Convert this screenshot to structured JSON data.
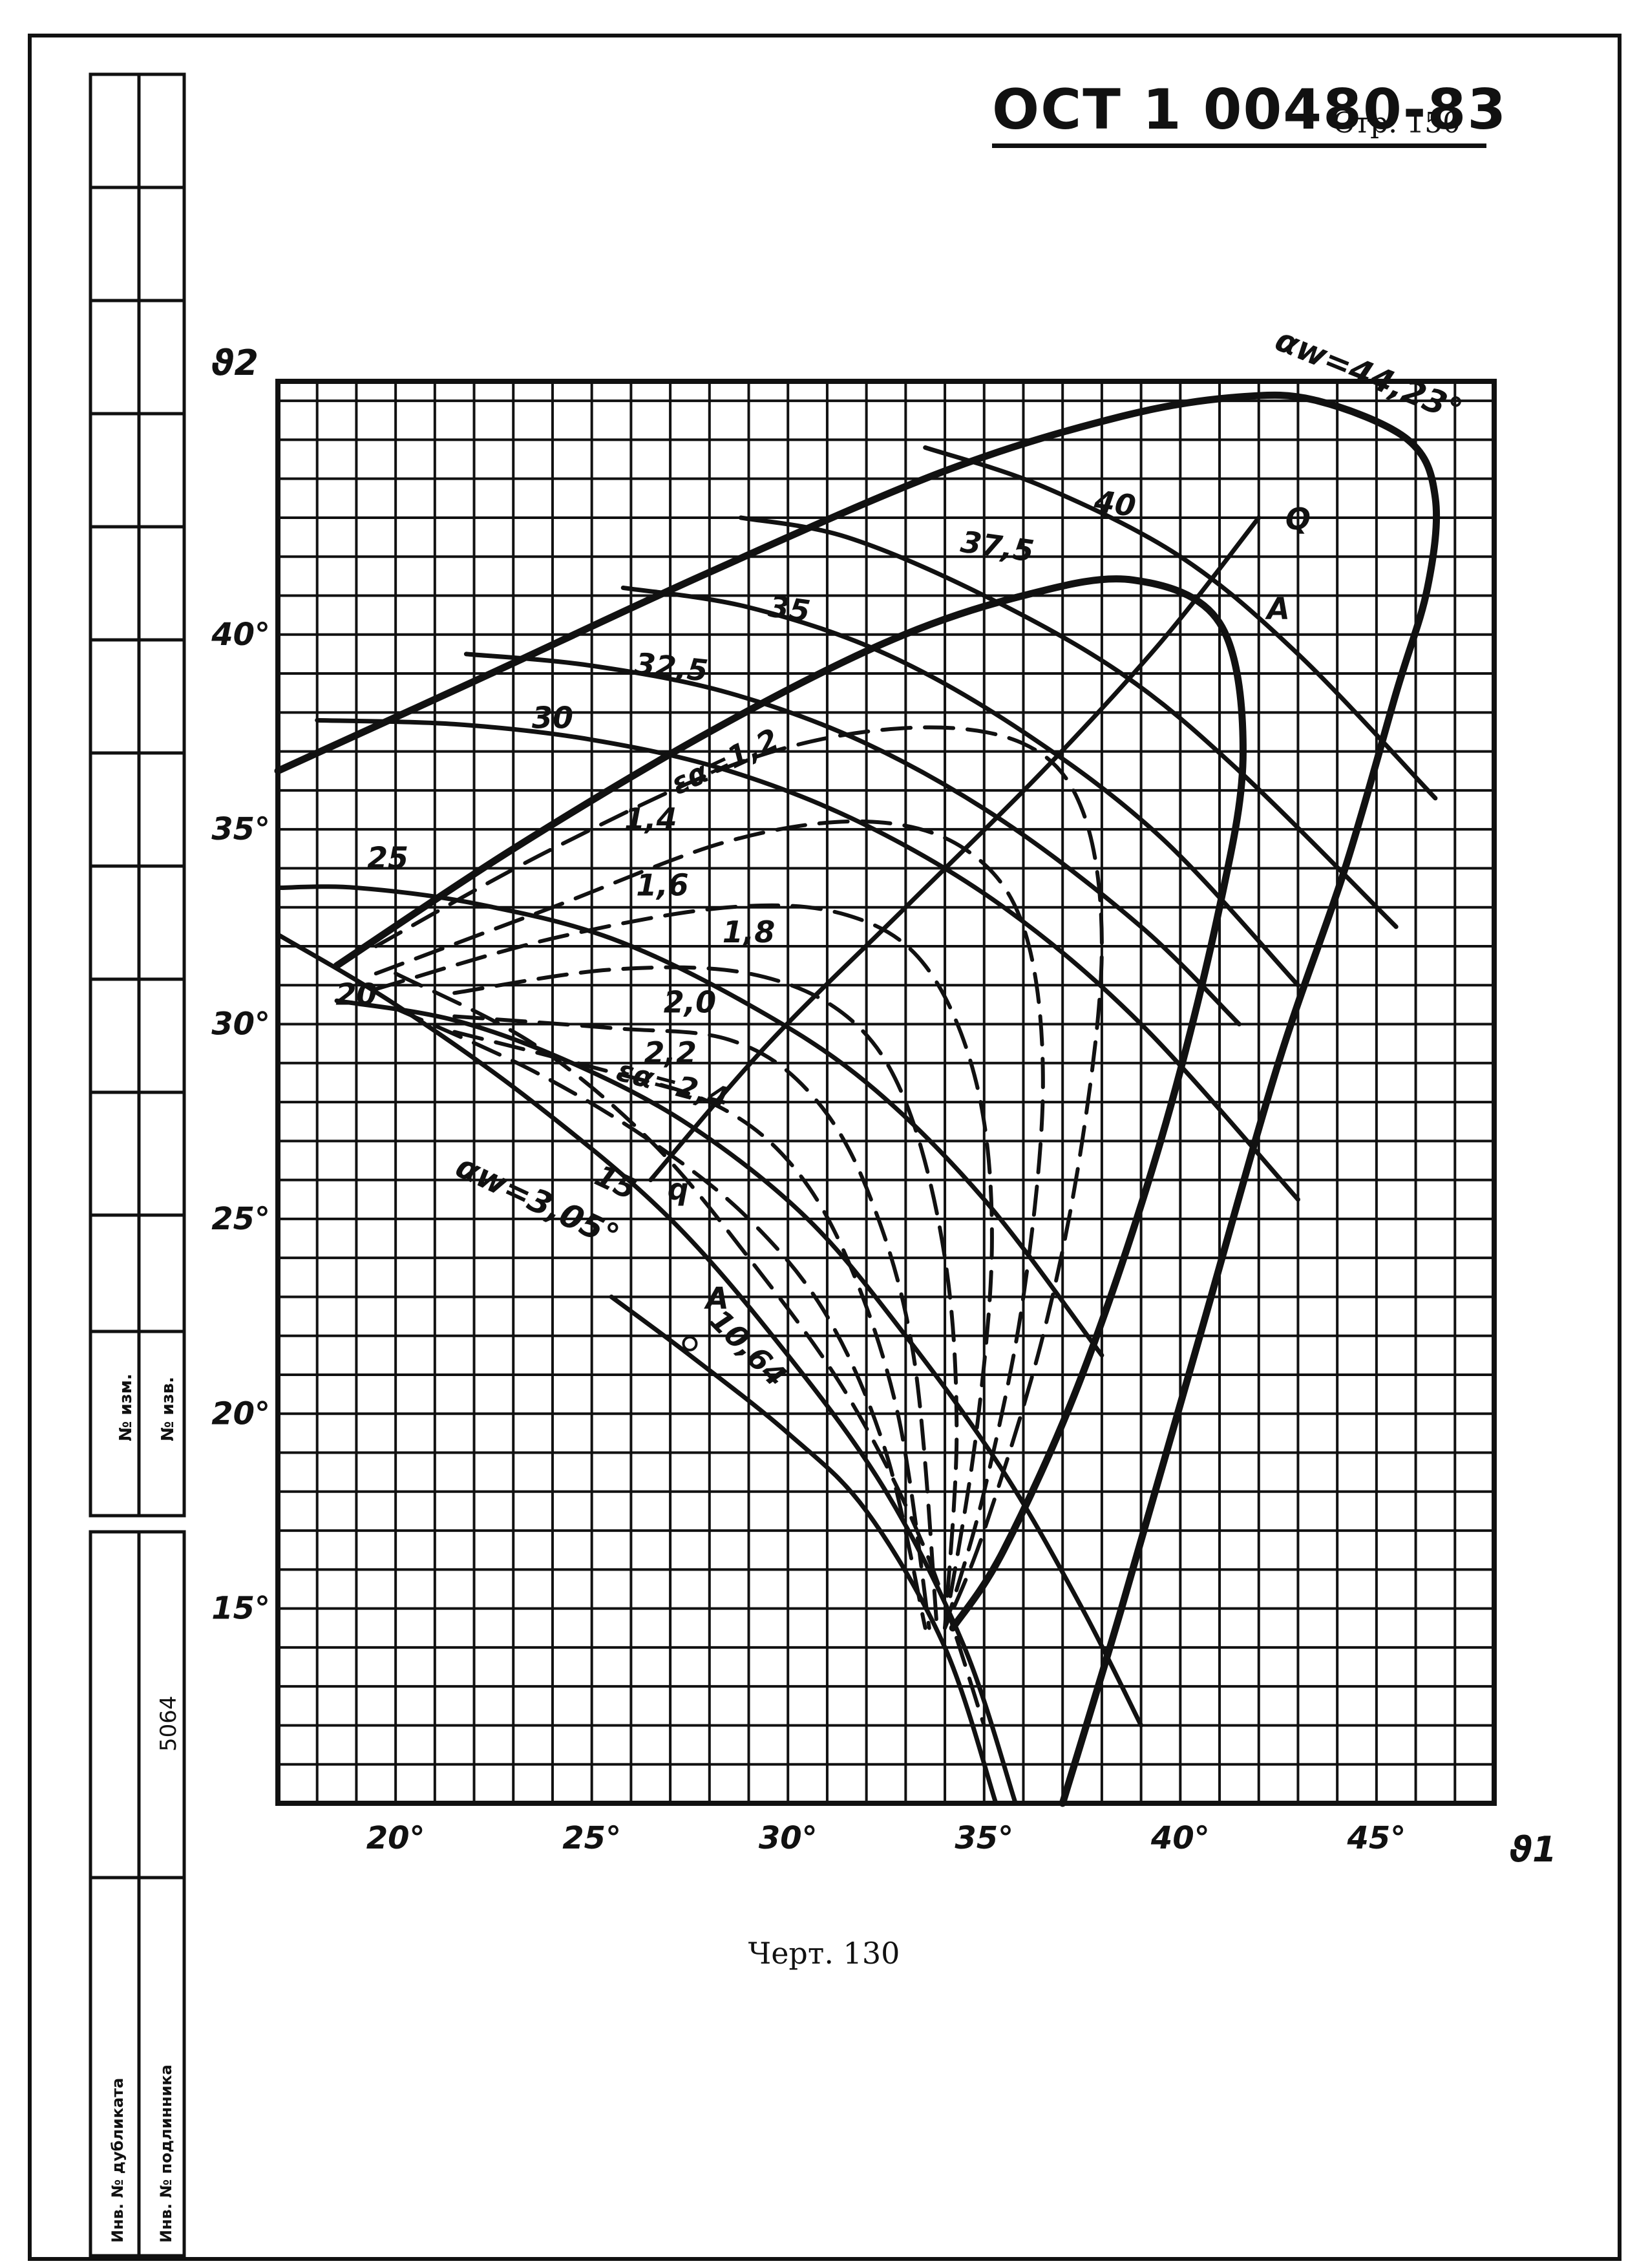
{
  "header": {
    "doc_number": "ОСТ 1 00480-83",
    "page_label": "Стр. 150"
  },
  "caption": "Черт. 130",
  "stamp": {
    "inv_podl_no_label": "Инв. № подлинника",
    "inv_dubl_no_label": "Инв. № дубликата",
    "vzam_label": "№ изм.",
    "izv_label": "№ изв.",
    "inv_value": "5064"
  },
  "chart_data": {
    "type": "line",
    "xlabel": "ϑ1",
    "ylabel": "ϑ2",
    "xlim": [
      17,
      48
    ],
    "ylim": [
      10,
      46.5
    ],
    "grid": true,
    "x_ticks": [
      {
        "value": 20,
        "label": "20°"
      },
      {
        "value": 25,
        "label": "25°"
      },
      {
        "value": 30,
        "label": "30°"
      },
      {
        "value": 35,
        "label": "35°"
      },
      {
        "value": 40,
        "label": "40°"
      },
      {
        "value": 45,
        "label": "45°"
      }
    ],
    "y_ticks": [
      {
        "value": 15,
        "label": "15°"
      },
      {
        "value": 20,
        "label": "20°"
      },
      {
        "value": 25,
        "label": "25°"
      },
      {
        "value": 30,
        "label": "30°"
      },
      {
        "value": 35,
        "label": "35°"
      },
      {
        "value": 40,
        "label": "40°"
      }
    ],
    "curve_labels": {
      "alpha_max": "αw=44,23°",
      "alpha_min": "αw=3,05°",
      "eps_top": "εα=1,2",
      "eps_bottom": "εα=2,4",
      "point_Q_upper": "Q",
      "point_A_upper": "A",
      "point_q_lower": "q",
      "point_A_lower": "A",
      "value_10_64": "10,64"
    },
    "series": [
      {
        "name": "40",
        "style": "solid",
        "x": [
          33.5,
          36.5,
          40.0,
          43.0,
          46.5
        ],
        "y": [
          44.8,
          43.8,
          42.0,
          39.5,
          35.8
        ]
      },
      {
        "name": "37,5",
        "style": "solid",
        "x": [
          28.8,
          31.5,
          35.0,
          38.5,
          41.5,
          45.5
        ],
        "y": [
          43.0,
          42.5,
          41.0,
          39.0,
          36.5,
          32.5
        ]
      },
      {
        "name": "35",
        "style": "solid",
        "x": [
          25.8,
          29.0,
          32.5,
          36.0,
          39.5,
          43.0
        ],
        "y": [
          41.2,
          40.7,
          39.5,
          37.5,
          34.8,
          31.0
        ]
      },
      {
        "name": "32,5",
        "style": "solid",
        "x": [
          21.8,
          25.0,
          28.5,
          32.0,
          35.5,
          39.0,
          41.5
        ],
        "y": [
          39.5,
          39.2,
          38.5,
          37.2,
          35.2,
          32.5,
          30.0
        ]
      },
      {
        "name": "30",
        "style": "solid",
        "x": [
          18.0,
          21.5,
          25.0,
          28.5,
          32.0,
          35.5,
          39.0,
          43.0
        ],
        "y": [
          37.8,
          37.7,
          37.3,
          36.5,
          35.1,
          33.0,
          30.0,
          25.5
        ]
      },
      {
        "name": "25",
        "style": "solid",
        "x": [
          17.0,
          19.0,
          22.0,
          25.5,
          29.0,
          32.0,
          35.0,
          38.0
        ],
        "y": [
          33.5,
          33.5,
          33.1,
          32.2,
          30.5,
          28.5,
          25.5,
          21.5
        ]
      },
      {
        "name": "20",
        "style": "solid",
        "x": [
          18.5,
          21.5,
          24.5,
          27.5,
          30.5,
          33.0,
          35.5,
          37.5,
          39.0
        ],
        "y": [
          30.6,
          30.1,
          29.0,
          27.4,
          25.0,
          22.0,
          18.5,
          15.0,
          12.0
        ]
      },
      {
        "name": "15",
        "style": "solid",
        "x": [
          17.0,
          20.0,
          23.5,
          27.0,
          30.0,
          32.5,
          34.5,
          35.8
        ],
        "y": [
          32.3,
          30.5,
          28.0,
          25.0,
          21.5,
          18.0,
          14.0,
          10.0
        ]
      },
      {
        "name": "10,64",
        "style": "solid",
        "x": [
          25.5,
          27.5,
          30.0,
          32.0,
          34.0,
          35.3
        ],
        "y": [
          23.0,
          21.5,
          19.5,
          17.5,
          14.0,
          10.0
        ]
      },
      {
        "name": "αw=44,23°",
        "style": "bold",
        "x": [
          17.0,
          22.0,
          28.0,
          34.0,
          38.5,
          41.5,
          43.5,
          45.8,
          46.5,
          46.3,
          45.5,
          44.2,
          42.5,
          40.5,
          38.5,
          37.0
        ],
        "y": [
          36.5,
          38.8,
          41.6,
          44.2,
          45.6,
          46.1,
          46.0,
          45.0,
          43.5,
          41.2,
          38.5,
          34.0,
          29.0,
          22.0,
          15.0,
          10.0
        ]
      },
      {
        "name": "Q",
        "style": "solid",
        "x": [
          26.5,
          29.5,
          33.0,
          36.5,
          39.5,
          42.0
        ],
        "y": [
          26.0,
          29.5,
          33.0,
          36.5,
          39.8,
          43.0
        ]
      },
      {
        "name": "A",
        "style": "bold",
        "x": [
          18.5,
          23.0,
          28.0,
          32.5,
          36.0,
          38.8,
          41.0,
          41.6,
          41.0,
          39.5,
          37.5,
          35.5,
          34.2
        ],
        "y": [
          31.5,
          34.5,
          37.5,
          39.8,
          41.0,
          41.4,
          40.3,
          37.0,
          33.0,
          27.0,
          21.0,
          16.5,
          14.5
        ]
      },
      {
        "name": "εα=1,2",
        "style": "dashed",
        "x": [
          19.5,
          24.0,
          29.0,
          33.0,
          36.0,
          37.5,
          38.0,
          37.5,
          36.5,
          35.0,
          34.0
        ],
        "y": [
          32.0,
          34.5,
          36.8,
          37.6,
          37.2,
          35.5,
          32.0,
          27.0,
          22.0,
          17.0,
          14.5
        ]
      },
      {
        "name": "1,4",
        "style": "dashed",
        "x": [
          19.5,
          24.0,
          28.5,
          32.0,
          34.5,
          36.0,
          36.5,
          36.0,
          35.0,
          34.0
        ],
        "y": [
          31.3,
          33.0,
          34.7,
          35.2,
          34.5,
          32.5,
          28.5,
          23.0,
          18.0,
          14.5
        ]
      },
      {
        "name": "1,6",
        "style": "dashed",
        "x": [
          19.5,
          24.0,
          28.5,
          31.5,
          33.5,
          34.8,
          35.2,
          34.8,
          34.0
        ],
        "y": [
          30.9,
          32.2,
          33.0,
          32.8,
          31.5,
          28.5,
          24.5,
          19.5,
          14.5
        ]
      },
      {
        "name": "1,8",
        "style": "dashed",
        "x": [
          21.5,
          25.5,
          29.0,
          31.5,
          33.0,
          34.0,
          34.3,
          34.0
        ],
        "y": [
          30.8,
          31.4,
          31.3,
          30.2,
          28.0,
          24.0,
          19.5,
          14.5
        ]
      },
      {
        "name": "2,0",
        "style": "dashed",
        "x": [
          21.5,
          25.5,
          28.5,
          30.5,
          32.0,
          33.2,
          33.8
        ],
        "y": [
          30.2,
          29.9,
          29.6,
          28.3,
          25.8,
          21.5,
          14.5
        ]
      },
      {
        "name": "2,2",
        "style": "dashed",
        "x": [
          21.5,
          25.0,
          28.0,
          30.0,
          31.5,
          32.8,
          33.6
        ],
        "y": [
          29.8,
          28.9,
          28.0,
          26.5,
          24.0,
          20.0,
          14.5
        ]
      },
      {
        "name": "εα=2,4",
        "style": "dashed",
        "x": [
          20.0,
          23.5,
          26.5,
          29.0,
          31.0,
          32.5,
          33.5
        ],
        "y": [
          30.4,
          28.8,
          27.0,
          25.0,
          22.5,
          19.0,
          14.5
        ]
      },
      {
        "name": "αw=3,05°",
        "style": "dashed",
        "x": [
          20.0,
          23.5,
          26.5,
          29.0,
          31.5,
          33.5,
          35.0
        ],
        "y": [
          31.3,
          29.5,
          27.0,
          24.0,
          20.5,
          16.5,
          12.0
        ]
      }
    ]
  }
}
